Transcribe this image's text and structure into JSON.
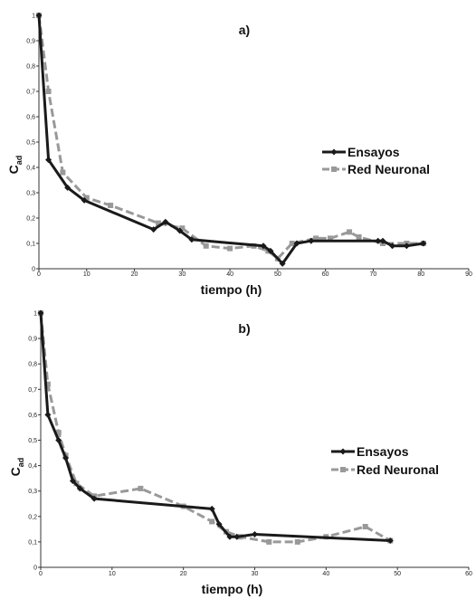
{
  "colors": {
    "ensayos": "#1a1a1a",
    "red_neuronal": "#999999",
    "axis": "#333333"
  },
  "chart_data": [
    {
      "type": "line",
      "title": "a)",
      "xlabel": "tiempo (h)",
      "ylabel_main": "C",
      "ylabel_sub": "ad",
      "xlim": [
        0,
        90
      ],
      "ylim": [
        0,
        1
      ],
      "xticks": [
        "0",
        "10",
        "20",
        "30",
        "40",
        "50",
        "60",
        "70",
        "80",
        "90"
      ],
      "yticks": [
        "0",
        "0,1",
        "0,2",
        "0,3",
        "0,4",
        "0,5",
        "0,6",
        "0,7",
        "0,8",
        "0,9",
        "1"
      ],
      "legend_position": "right",
      "series": [
        {
          "name": "Ensayos",
          "x": [
            0,
            2,
            6,
            9.5,
            24,
            26.5,
            29.5,
            32,
            47,
            48.5,
            51,
            54,
            57,
            71,
            72,
            74,
            77,
            80.5
          ],
          "y": [
            1,
            0.43,
            0.32,
            0.27,
            0.155,
            0.185,
            0.15,
            0.115,
            0.09,
            0.07,
            0.02,
            0.1,
            0.11,
            0.11,
            0.11,
            0.09,
            0.09,
            0.1
          ]
        },
        {
          "name": "Red Neuronal",
          "x": [
            0,
            2,
            5,
            10,
            15,
            25,
            30,
            35,
            40,
            45,
            48,
            50,
            53,
            58,
            61,
            65,
            67,
            72,
            77,
            80.5
          ],
          "y": [
            1,
            0.7,
            0.38,
            0.28,
            0.25,
            0.18,
            0.16,
            0.09,
            0.08,
            0.09,
            0.07,
            0.04,
            0.1,
            0.12,
            0.12,
            0.145,
            0.125,
            0.1,
            0.1,
            0.1
          ]
        }
      ]
    },
    {
      "type": "line",
      "title": "b)",
      "xlabel": "tiempo (h)",
      "ylabel_main": "C",
      "ylabel_sub": "ad",
      "xlim": [
        0,
        60
      ],
      "ylim": [
        0,
        1
      ],
      "xticks": [
        "0",
        "10",
        "20",
        "30",
        "40",
        "50",
        "60"
      ],
      "yticks": [
        "0",
        "0,1",
        "0,2",
        "0,3",
        "0,4",
        "0,5",
        "0,6",
        "0,7",
        "0,8",
        "0,9",
        "1"
      ],
      "legend_position": "right",
      "series": [
        {
          "name": "Ensayos",
          "x": [
            0,
            1,
            2.5,
            3.5,
            4.5,
            5.5,
            7.5,
            24,
            25,
            26.5,
            27.5,
            30,
            49
          ],
          "y": [
            1,
            0.6,
            0.5,
            0.43,
            0.34,
            0.31,
            0.27,
            0.23,
            0.17,
            0.12,
            0.12,
            0.13,
            0.105
          ]
        },
        {
          "name": "Red Neuronal",
          "x": [
            0,
            1,
            2.5,
            3.5,
            5,
            7.5,
            14,
            20,
            24,
            26,
            28,
            32,
            36,
            40,
            45.5,
            49
          ],
          "y": [
            1,
            0.72,
            0.53,
            0.44,
            0.33,
            0.28,
            0.31,
            0.24,
            0.18,
            0.14,
            0.12,
            0.1,
            0.1,
            0.12,
            0.16,
            0.105
          ]
        }
      ]
    }
  ]
}
